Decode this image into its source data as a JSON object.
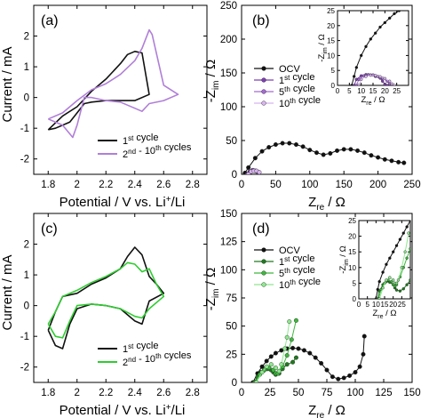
{
  "colors": {
    "black": "#111111",
    "purple": "#b07fd8",
    "purple_dark": "#7e3fb0",
    "purple_mid": "#a36ad1",
    "purple_light": "#d8b4ef",
    "green": "#2ecc30",
    "green_dark": "#1f7a1f",
    "green_mid": "#3db83d",
    "green_light": "#8ee88e"
  },
  "chart_data": [
    {
      "id": "a",
      "type": "line",
      "panel_label": "(a)",
      "xlabel": "Potential / V vs. Li⁺/Li",
      "xlabel_main": "Potential / V vs. Li",
      "xlabel_sup": "+",
      "xlabel_tail": "/Li",
      "ylabel": "Current / mA",
      "xlim": [
        1.7,
        2.9
      ],
      "ylim": [
        -2.5,
        3.0
      ],
      "xticks": [
        1.8,
        2.0,
        2.2,
        2.4,
        2.6,
        2.8
      ],
      "yticks": [
        -2,
        -1,
        0,
        1,
        2
      ],
      "legend": [
        {
          "text": "1st cycle",
          "color_key": "black"
        },
        {
          "text": "2nd - 10th cycles",
          "color_key": "purple"
        }
      ],
      "series": [
        {
          "name": "1st cycle",
          "color_key": "black",
          "x": [
            1.8,
            1.9,
            2.0,
            2.1,
            2.2,
            2.3,
            2.35,
            2.4,
            2.45,
            2.5,
            2.4,
            2.3,
            2.2,
            2.1,
            2.05,
            2.0,
            1.95,
            1.9,
            1.85,
            1.8
          ],
          "y": [
            -1.05,
            -0.6,
            -0.3,
            0.2,
            0.6,
            1.1,
            1.4,
            1.5,
            1.45,
            0.1,
            -0.1,
            -0.1,
            -0.1,
            -0.15,
            -0.2,
            -0.5,
            -0.8,
            -0.9,
            -1.0,
            -1.05
          ]
        },
        {
          "name": "2nd - 10th cycles",
          "color_key": "purple",
          "x": [
            1.8,
            1.9,
            2.0,
            2.1,
            2.2,
            2.3,
            2.4,
            2.45,
            2.5,
            2.52,
            2.6,
            2.7,
            2.6,
            2.5,
            2.45,
            2.4,
            2.3,
            2.2,
            2.1,
            2.05,
            2.0,
            1.97,
            1.9,
            1.85,
            1.8
          ],
          "y": [
            -0.7,
            -0.5,
            -0.1,
            0.25,
            0.45,
            0.75,
            1.2,
            1.6,
            2.2,
            2.05,
            0.4,
            0.1,
            -0.1,
            -0.2,
            -0.45,
            -0.35,
            -0.15,
            -0.1,
            0.0,
            0.0,
            -0.9,
            -1.3,
            -0.9,
            -0.8,
            -0.7
          ]
        }
      ]
    },
    {
      "id": "b",
      "type": "line",
      "panel_label": "(b)",
      "xlabel": "Zre / Ω",
      "ylabel": "-Zim / Ω",
      "xlim": [
        0,
        250
      ],
      "ylim": [
        0,
        250
      ],
      "xticks": [
        0,
        50,
        100,
        150,
        200,
        250
      ],
      "yticks": [
        0,
        50,
        100,
        150,
        200,
        250
      ],
      "legend": [
        {
          "text": "OCV",
          "color_key": "black"
        },
        {
          "text": "1st cycle",
          "color_key": "purple_dark"
        },
        {
          "text": "5th cycle",
          "color_key": "purple_mid"
        },
        {
          "text": "10th cycle",
          "color_key": "purple_light"
        }
      ],
      "series": [
        {
          "name": "OCV",
          "color_key": "black",
          "x": [
            5,
            10,
            20,
            30,
            40,
            50,
            60,
            70,
            80,
            90,
            100,
            110,
            120,
            130,
            140,
            150,
            160,
            170,
            180,
            190,
            200,
            210,
            220,
            230,
            238
          ],
          "y": [
            2,
            10,
            24,
            34,
            40,
            44,
            46,
            46,
            44,
            41,
            36,
            32,
            29,
            31,
            35,
            37,
            37,
            35,
            32,
            28,
            25,
            22,
            20,
            18,
            17
          ]
        },
        {
          "name": "1st cycle",
          "color_key": "purple_dark",
          "x": [
            8,
            12,
            16,
            20,
            24
          ],
          "y": [
            0,
            4,
            6,
            5,
            3
          ]
        },
        {
          "name": "5th cycle",
          "color_key": "purple_mid",
          "x": [
            9,
            13,
            17,
            21,
            25
          ],
          "y": [
            0,
            4,
            6,
            5,
            3
          ]
        },
        {
          "name": "10th cycle",
          "color_key": "purple_light",
          "x": [
            10,
            14,
            18,
            22,
            26
          ],
          "y": [
            0,
            4,
            5,
            5,
            3
          ]
        }
      ],
      "inset": {
        "xlabel": "Zre / Ω",
        "ylabel": "-Zim / Ω",
        "xlim": [
          0,
          30
        ],
        "ylim": [
          0,
          25
        ],
        "xticks": [
          0,
          5,
          10,
          15,
          20,
          25
        ],
        "yticks": [
          0,
          5,
          10,
          15,
          20,
          25
        ],
        "series": [
          {
            "name": "OCV",
            "color_key": "black",
            "x": [
              6,
              7,
              8,
              10,
              12,
              14,
              16,
              18,
              20,
              22,
              24,
              26
            ],
            "y": [
              0,
              3,
              6,
              10,
              13,
              15.5,
              17.5,
              19.5,
              21,
              22.5,
              24,
              25
            ]
          },
          {
            "name": "1st cycle",
            "color_key": "purple_dark",
            "x": [
              7,
              8,
              10,
              12,
              14,
              16,
              18,
              19,
              20,
              21
            ],
            "y": [
              0,
              2,
              3.2,
              3.6,
              3.5,
              3.0,
              2.4,
              1.4,
              0.4,
              0
            ]
          },
          {
            "name": "5th cycle",
            "color_key": "purple_mid",
            "x": [
              8,
              9,
              11,
              13,
              15,
              17,
              19,
              21,
              22,
              23
            ],
            "y": [
              0,
              2,
              3.2,
              3.6,
              3.5,
              3.0,
              2.4,
              1.4,
              0.5,
              0
            ]
          },
          {
            "name": "10th cycle",
            "color_key": "purple_light",
            "x": [
              9,
              10,
              12,
              14,
              16,
              18,
              20,
              22,
              23,
              24
            ],
            "y": [
              0,
              2,
              3.0,
              3.4,
              3.3,
              2.9,
              2.3,
              1.4,
              0.5,
              0
            ]
          }
        ]
      }
    },
    {
      "id": "c",
      "type": "line",
      "panel_label": "(c)",
      "xlabel": "Potential / V vs. Li⁺/Li",
      "xlabel_main": "Potential / V vs. Li",
      "xlabel_sup": "+",
      "xlabel_tail": "/Li",
      "ylabel": "Current / mA",
      "xlim": [
        1.7,
        2.9
      ],
      "ylim": [
        -2.5,
        3.0
      ],
      "xticks": [
        1.8,
        2.0,
        2.2,
        2.4,
        2.6,
        2.8
      ],
      "yticks": [
        -2,
        -1,
        0,
        1,
        2
      ],
      "legend": [
        {
          "text": "1st cycle",
          "color_key": "black"
        },
        {
          "text": "2nd - 10th cycles",
          "color_key": "green"
        }
      ],
      "series": [
        {
          "name": "1st cycle",
          "color_key": "black",
          "x": [
            1.8,
            1.85,
            1.9,
            2.0,
            2.1,
            2.2,
            2.3,
            2.35,
            2.4,
            2.45,
            2.5,
            2.55,
            2.6,
            2.5,
            2.45,
            2.4,
            2.3,
            2.2,
            2.1,
            2.0,
            1.95,
            1.9,
            1.85,
            1.8
          ],
          "y": [
            -0.8,
            -0.2,
            0.3,
            0.4,
            0.7,
            0.9,
            1.2,
            1.6,
            1.9,
            1.65,
            0.95,
            0.7,
            0.4,
            0.15,
            -0.6,
            -0.5,
            -0.1,
            0.0,
            0.05,
            -0.1,
            -0.6,
            -1.4,
            -1.3,
            -0.8
          ]
        },
        {
          "name": "2nd - 10th cycles",
          "color_key": "green",
          "x": [
            1.8,
            1.85,
            1.9,
            2.0,
            2.1,
            2.2,
            2.3,
            2.35,
            2.4,
            2.45,
            2.5,
            2.55,
            2.6,
            2.5,
            2.45,
            2.4,
            2.3,
            2.2,
            2.1,
            2.0,
            1.95,
            1.9,
            1.85,
            1.8
          ],
          "y": [
            -0.6,
            -0.2,
            0.3,
            0.5,
            0.75,
            0.95,
            1.2,
            1.4,
            1.35,
            1.1,
            1.2,
            0.7,
            0.3,
            -0.1,
            -0.4,
            -0.35,
            -0.1,
            0.0,
            0.05,
            0.0,
            -0.5,
            -1.05,
            -1.0,
            -0.6
          ]
        }
      ]
    },
    {
      "id": "d",
      "type": "line",
      "panel_label": "(d)",
      "xlabel": "Zre / Ω",
      "ylabel": "-Zim / Ω",
      "xlim": [
        0,
        150
      ],
      "ylim": [
        0,
        150
      ],
      "xticks": [
        0,
        25,
        50,
        75,
        100,
        125,
        150
      ],
      "yticks": [
        0,
        25,
        50,
        75,
        100,
        125,
        150
      ],
      "legend": [
        {
          "text": "OCV",
          "color_key": "black"
        },
        {
          "text": "1st cycle",
          "color_key": "green_dark"
        },
        {
          "text": "5th cycle",
          "color_key": "green_mid"
        },
        {
          "text": "10th cycle",
          "color_key": "green_light"
        }
      ],
      "series": [
        {
          "name": "OCV",
          "color_key": "black",
          "x": [
            10,
            14,
            18,
            22,
            26,
            30,
            35,
            40,
            45,
            50,
            55,
            60,
            65,
            70,
            75,
            80,
            85,
            90,
            95,
            100,
            104,
            107,
            108
          ],
          "y": [
            0,
            8,
            14,
            19,
            23,
            26,
            28.5,
            30,
            30.5,
            30,
            28.5,
            26,
            22,
            17,
            11,
            5,
            3,
            4,
            6,
            9,
            14,
            25,
            41
          ]
        },
        {
          "name": "1st cycle",
          "color_key": "green_dark",
          "x": [
            11,
            14,
            17,
            20,
            23,
            26,
            28,
            30,
            33,
            36,
            40,
            45,
            48
          ],
          "y": [
            0,
            5,
            9,
            11,
            12,
            11,
            9,
            7,
            8,
            12,
            16,
            18,
            22
          ]
        },
        {
          "name": "5th cycle",
          "color_key": "green_mid",
          "x": [
            12,
            16,
            20,
            24,
            28,
            30,
            32,
            36,
            40,
            44,
            48
          ],
          "y": [
            0,
            7,
            11,
            13,
            11,
            8,
            8,
            14,
            24,
            38,
            55
          ]
        },
        {
          "name": "10th cycle",
          "color_key": "green_light",
          "x": [
            13,
            18,
            22,
            26,
            30,
            33,
            35,
            38,
            40,
            42
          ],
          "y": [
            0,
            9,
            14,
            16,
            13,
            10,
            16,
            30,
            40,
            54
          ]
        }
      ],
      "inset": {
        "xlabel": "Zre / Ω",
        "ylabel": "-Zim / Ω",
        "xlim": [
          0,
          30
        ],
        "ylim": [
          0,
          25
        ],
        "xticks": [
          0,
          5,
          10,
          15,
          20,
          25
        ],
        "yticks": [
          0,
          5,
          10,
          15,
          20,
          25
        ],
        "series": [
          {
            "name": "OCV",
            "color_key": "black",
            "x": [
              10,
              11,
              12,
              14,
              16,
              18,
              20,
              22,
              24,
              26,
              28,
              30
            ],
            "y": [
              0,
              3,
              5.5,
              8.5,
              11,
              13,
              15,
              17,
              19,
              21,
              23,
              25
            ]
          },
          {
            "name": "1st cycle",
            "color_key": "green_dark",
            "x": [
              11,
              12,
              14,
              16,
              18,
              20,
              21,
              22,
              24,
              26,
              28,
              30
            ],
            "y": [
              0,
              2.5,
              4.5,
              5.5,
              5.3,
              4.5,
              3.5,
              2.8,
              2.5,
              3.2,
              4.5,
              6
            ]
          },
          {
            "name": "5th cycle",
            "color_key": "green_mid",
            "x": [
              11.5,
              13,
              15,
              17,
              19,
              20,
              21,
              22,
              24,
              26,
              28,
              30
            ],
            "y": [
              0,
              3,
              5,
              6,
              5.5,
              4.5,
              4,
              4.5,
              7,
              10,
              13,
              16
            ]
          },
          {
            "name": "10th cycle",
            "color_key": "green_light",
            "x": [
              12,
              14,
              16,
              18,
              20,
              21,
              22,
              23,
              25,
              27,
              29
            ],
            "y": [
              0,
              3.5,
              6,
              6.8,
              6,
              5,
              5,
              6,
              10,
              15,
              21
            ]
          }
        ]
      }
    }
  ]
}
